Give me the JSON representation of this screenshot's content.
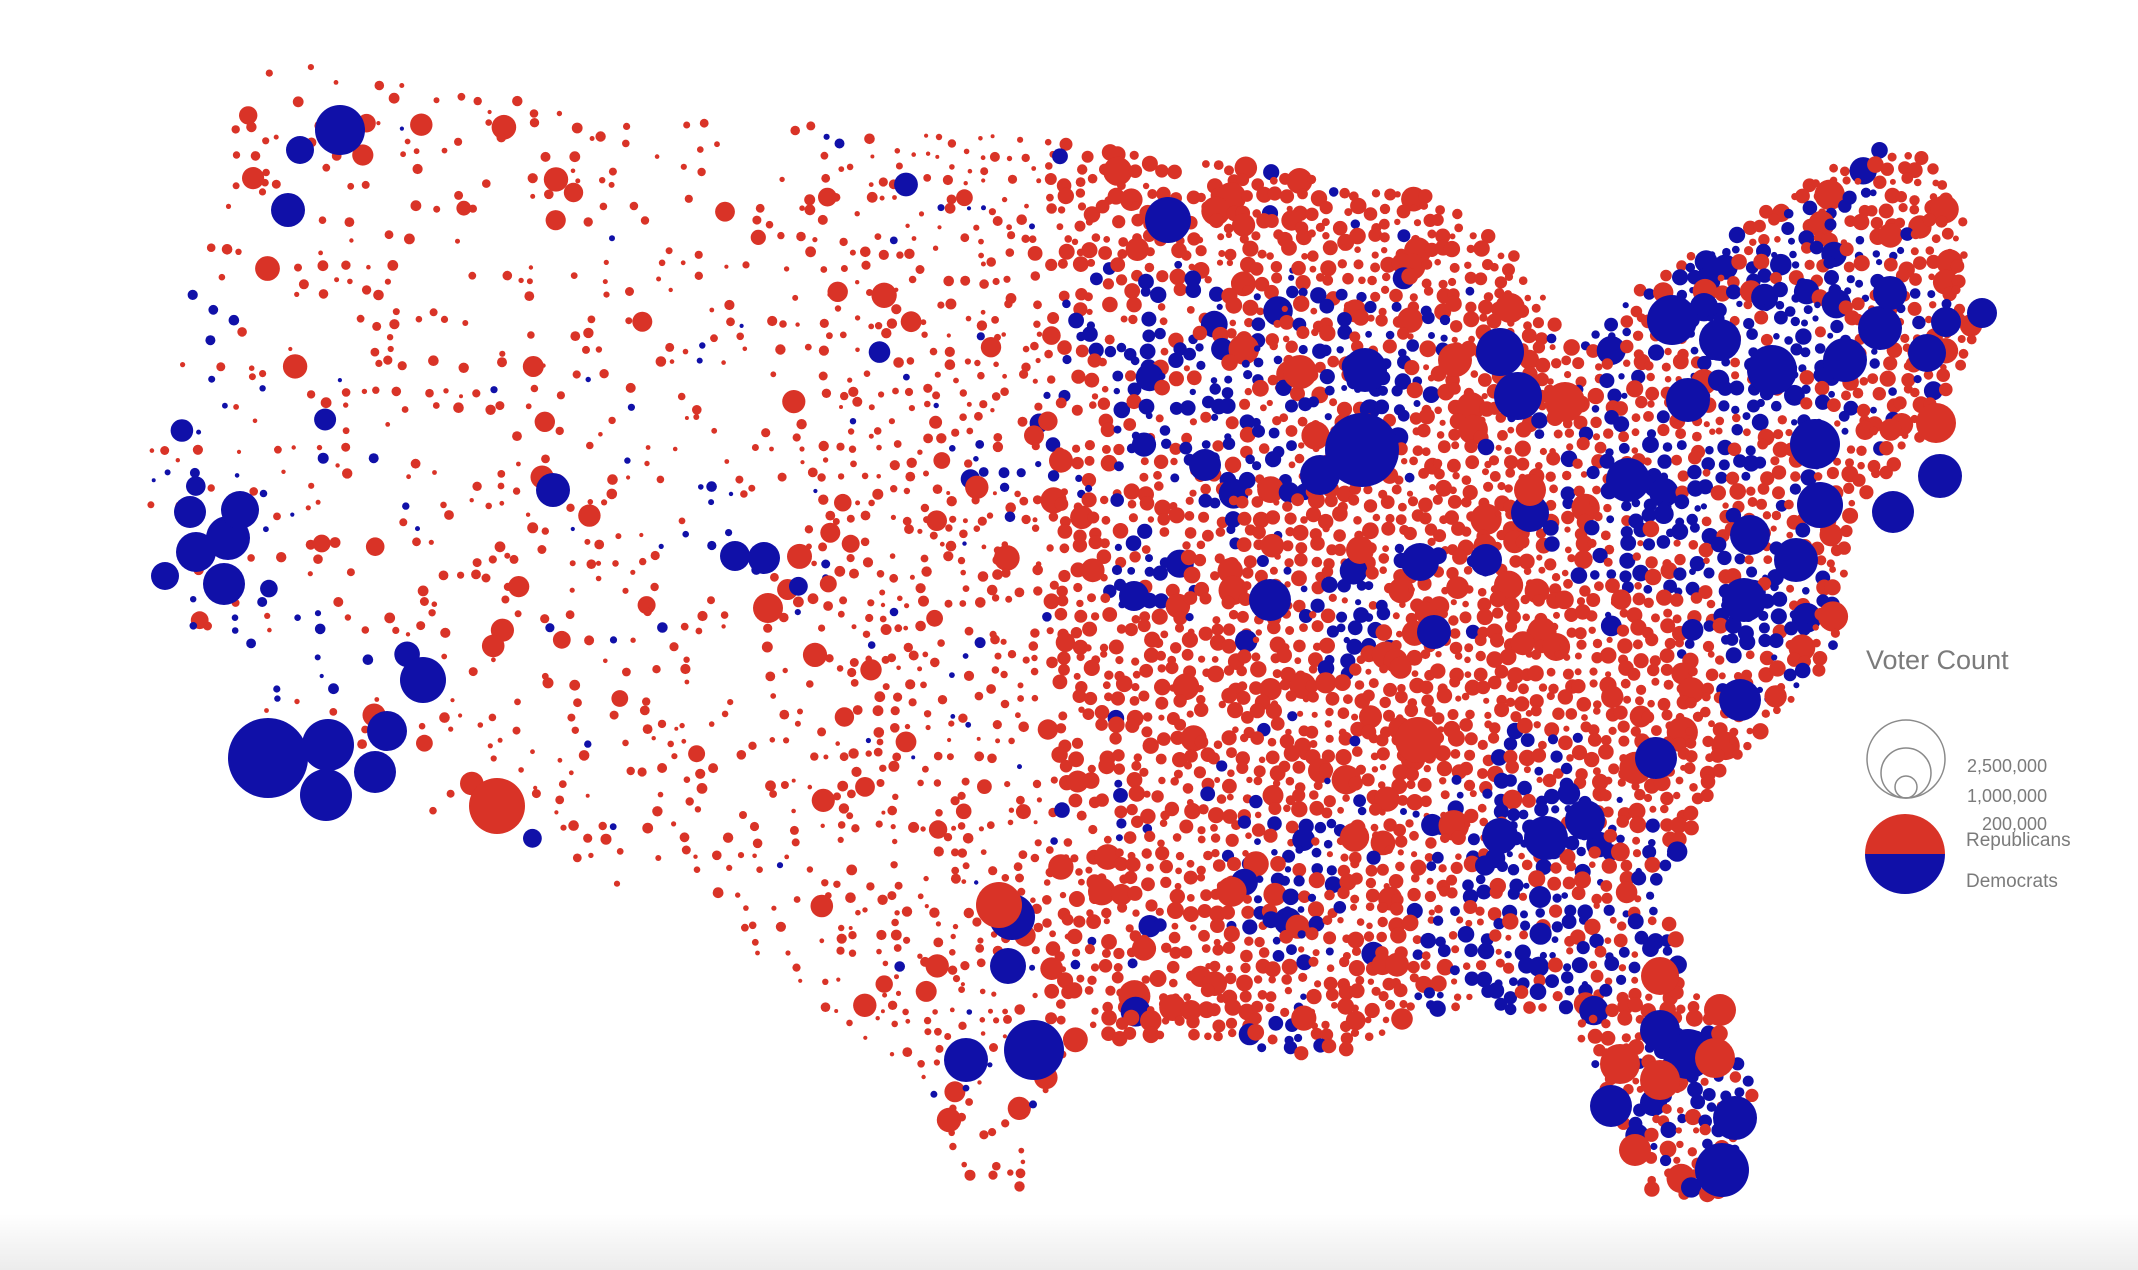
{
  "colors": {
    "republicans": "#d93327",
    "democrats": "#1010a8",
    "legend_outline": "#8a8a8a"
  },
  "legend": {
    "title": "Voter Count",
    "size_labels": [
      "2,500,000",
      "1,000,000",
      "200,000"
    ],
    "parties": [
      "Republicans",
      "Democrats"
    ]
  }
}
